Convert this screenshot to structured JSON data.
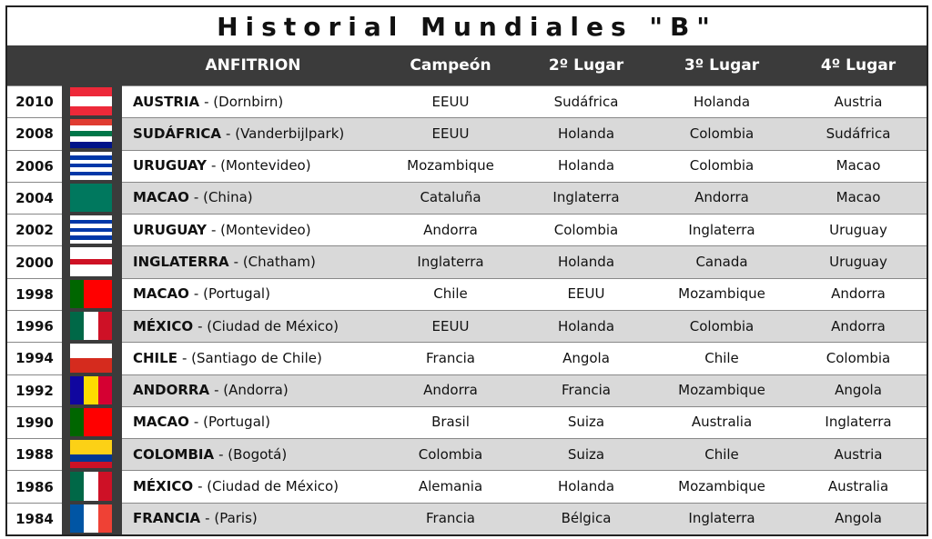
{
  "title": "Historial Mundiales \"B\"",
  "header": [
    "ANFITRION",
    "Campeón",
    "2º Lugar",
    "3º Lugar",
    "4º Lugar"
  ],
  "rows": [
    {
      "year": "2010",
      "host": "AUSTRIA",
      "place": "- (Dornbirn)",
      "places": [
        "EEUU",
        "Sudáfrica",
        "Holanda",
        "Austria"
      ]
    },
    {
      "year": "2008",
      "host": "SUDÁFRICA",
      "place": "- (Vanderbijlpark)",
      "places": [
        "EEUU",
        "Holanda",
        "Colombia",
        "Sudáfrica"
      ]
    },
    {
      "year": "2006",
      "host": "URUGUAY",
      "place": "- (Montevideo)",
      "places": [
        "Mozambique",
        "Holanda",
        "Colombia",
        "Macao"
      ]
    },
    {
      "year": "2004",
      "host": "MACAO",
      "place": "- (China)",
      "places": [
        "Cataluña",
        "Inglaterra",
        "Andorra",
        "Macao"
      ]
    },
    {
      "year": "2002",
      "host": "URUGUAY",
      "place": "- (Montevideo)",
      "places": [
        "Andorra",
        "Colombia",
        "Inglaterra",
        "Uruguay"
      ]
    },
    {
      "year": "2000",
      "host": "INGLATERRA",
      "place": "- (Chatham)",
      "places": [
        "Inglaterra",
        "Holanda",
        "Canada",
        "Uruguay"
      ]
    },
    {
      "year": "1998",
      "host": "MACAO",
      "place": "- (Portugal)",
      "places": [
        "Chile",
        "EEUU",
        "Mozambique",
        "Andorra"
      ]
    },
    {
      "year": "1996",
      "host": "MÉXICO",
      "place": "- (Ciudad de México)",
      "places": [
        "EEUU",
        "Holanda",
        "Colombia",
        "Andorra"
      ]
    },
    {
      "year": "1994",
      "host": "CHILE",
      "place": "- (Santiago de Chile)",
      "places": [
        "Francia",
        "Angola",
        "Chile",
        "Colombia"
      ]
    },
    {
      "year": "1992",
      "host": "ANDORRA",
      "place": "- (Andorra)",
      "places": [
        "Andorra",
        "Francia",
        "Mozambique",
        "Angola"
      ]
    },
    {
      "year": "1990",
      "host": "MACAO",
      "place": "- (Portugal)",
      "places": [
        "Brasil",
        "Suiza",
        "Australia",
        "Inglaterra"
      ]
    },
    {
      "year": "1988",
      "host": "COLOMBIA",
      "place": "- (Bogotá)",
      "places": [
        "Colombia",
        "Suiza",
        "Chile",
        "Austria"
      ]
    },
    {
      "year": "1986",
      "host": "MÉXICO",
      "place": "- (Ciudad de México)",
      "places": [
        "Alemania",
        "Holanda",
        "Mozambique",
        "Australia"
      ]
    },
    {
      "year": "1984",
      "host": "FRANCIA",
      "place": "- (Paris)",
      "places": [
        "Francia",
        "Bélgica",
        "Inglaterra",
        "Angola"
      ]
    }
  ]
}
